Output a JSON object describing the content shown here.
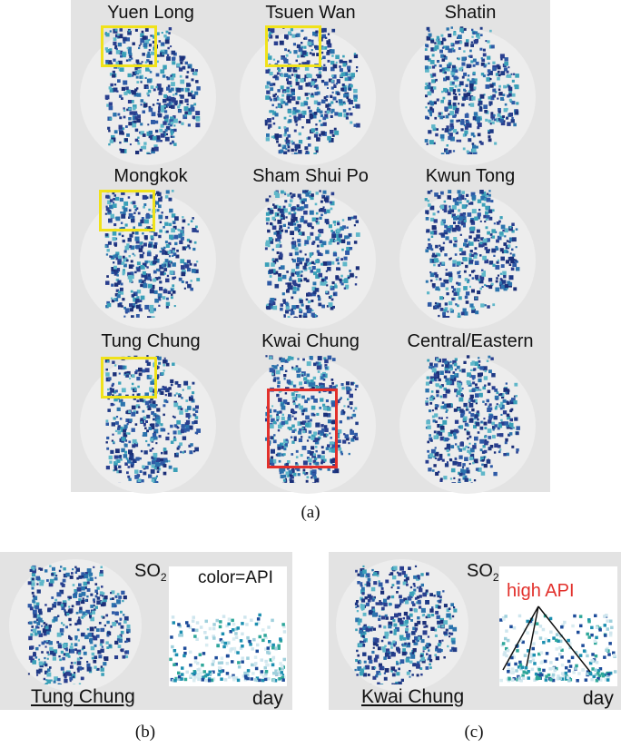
{
  "grid": {
    "caption": "(a)",
    "cells": [
      {
        "label": "Yuen Long",
        "highlight": "yellow"
      },
      {
        "label": "Tsuen Wan",
        "highlight": "yellow"
      },
      {
        "label": "Shatin",
        "highlight": ""
      },
      {
        "label": "Mongkok",
        "highlight": "yellow"
      },
      {
        "label": "Sham Shui Po",
        "highlight": ""
      },
      {
        "label": "Kwun Tong",
        "highlight": ""
      },
      {
        "label": "Tung Chung",
        "highlight": "yellow"
      },
      {
        "label": "Kwai Chung",
        "highlight": "red"
      },
      {
        "label": "Central/Eastern",
        "highlight": ""
      }
    ]
  },
  "panel_b": {
    "caption": "(b)",
    "place": "Tung Chung",
    "pollutant": "SO",
    "pollutant_sub": "2",
    "color_label": "color=API",
    "axis_label": "day"
  },
  "panel_c": {
    "caption": "(c)",
    "place": "Kwai Chung",
    "pollutant": "SO",
    "pollutant_sub": "2",
    "annotation": "high API",
    "axis_label": "day"
  },
  "colors": {
    "panel_bg": "#e3e3e3",
    "circle_bg": "#ededed",
    "blob_dark": "#2a3f8f",
    "blob_light": "#3aa0b8",
    "highlight_yellow": "#f0e21a",
    "highlight_red": "#e2302b",
    "annotation_red": "#e2302b"
  }
}
